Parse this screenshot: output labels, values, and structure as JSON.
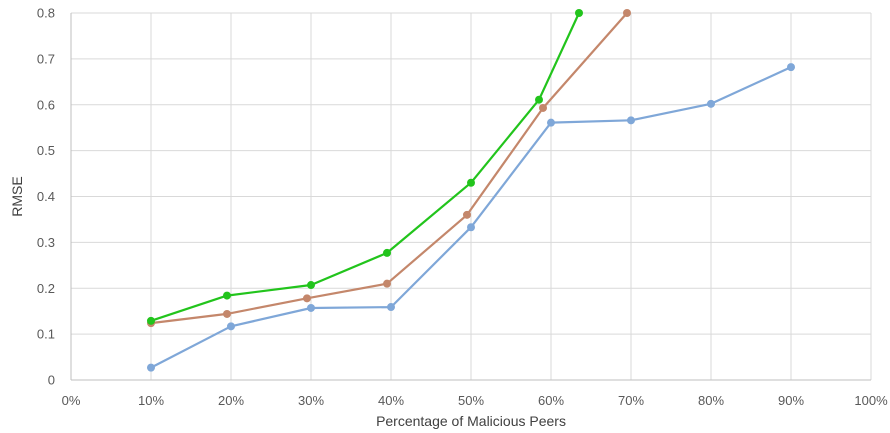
{
  "chart_data": {
    "type": "line",
    "title": "",
    "xlabel": "Percentage of Malicious Peers",
    "ylabel": "RMSE",
    "xlim": [
      0,
      100
    ],
    "ylim": [
      0,
      0.8
    ],
    "x_ticks": [
      0,
      10,
      20,
      30,
      40,
      50,
      60,
      70,
      80,
      90,
      100
    ],
    "x_tick_labels": [
      "0%",
      "10%",
      "20%",
      "30%",
      "40%",
      "50%",
      "60%",
      "70%",
      "80%",
      "90%",
      "100%"
    ],
    "y_ticks": [
      0,
      0.1,
      0.2,
      0.3,
      0.4,
      0.5,
      0.6,
      0.7,
      0.8
    ],
    "y_tick_labels": [
      "0",
      "0.1",
      "0.2",
      "0.3",
      "0.4",
      "0.5",
      "0.6",
      "0.7",
      "0.8"
    ],
    "grid": "vertical-and-horizontal",
    "legend": "none",
    "series": [
      {
        "color": "#7fa7d8",
        "x": [
          10,
          20,
          30,
          40,
          50,
          60,
          70,
          80,
          90
        ],
        "y": [
          0.027,
          0.117,
          0.157,
          0.159,
          0.333,
          0.561,
          0.566,
          0.602,
          0.682
        ]
      },
      {
        "color": "#c4876b",
        "x": [
          10,
          19.5,
          29.5,
          39.5,
          49.5,
          59,
          69.5
        ],
        "y": [
          0.124,
          0.144,
          0.178,
          0.21,
          0.36,
          0.593,
          0.8
        ]
      },
      {
        "color": "#22c41c",
        "x": [
          10,
          19.5,
          30,
          39.5,
          50,
          58.5,
          63.5
        ],
        "y": [
          0.129,
          0.184,
          0.207,
          0.277,
          0.43,
          0.611,
          0.8
        ]
      }
    ]
  }
}
